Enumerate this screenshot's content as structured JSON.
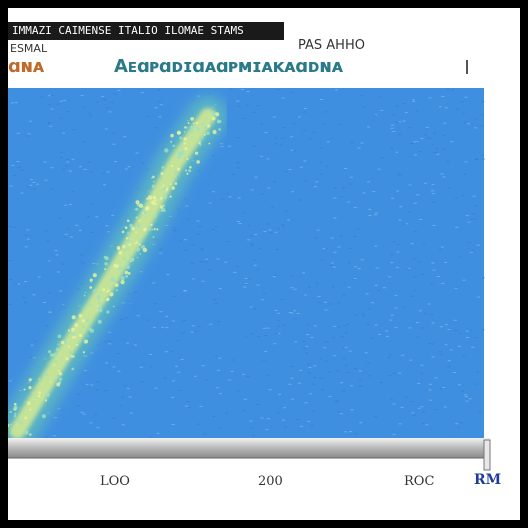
{
  "chart_data": {
    "type": "heatmap",
    "title": "IMMAZI CAIMENSE ITALIO ILOMAE STAMS",
    "subtitle": "ESMAL",
    "title_right": "PAS  AHHO",
    "legend": [
      "ɑɴᴀ",
      "Aᴇɑᴘɑᴅɪɑᴀɑᴘᴍɪᴀᴋᴀɑᴅɴᴀ"
    ],
    "x_ticks": [
      "LOO",
      "200",
      "ROC"
    ],
    "x_tick_extra": "RM",
    "ylim": [
      0,
      1
    ],
    "xlim": [
      0,
      1
    ],
    "grid": false,
    "colors": {
      "background": "#3f8fe0",
      "density_high": "#d8ec90",
      "density_mid": "#6fd0b0",
      "band": "#8a8a8a"
    },
    "ridge": [
      [
        0.02,
        0.02
      ],
      [
        0.1,
        0.2
      ],
      [
        0.2,
        0.42
      ],
      [
        0.28,
        0.6
      ],
      [
        0.35,
        0.78
      ],
      [
        0.42,
        0.92
      ]
    ]
  }
}
